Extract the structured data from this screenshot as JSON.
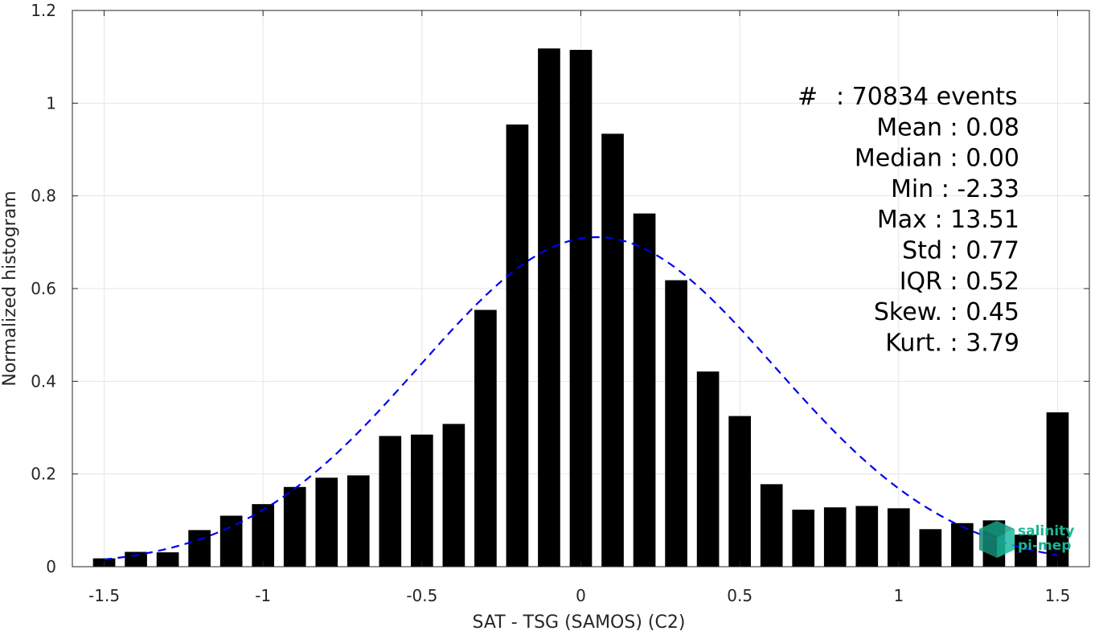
{
  "chart_data": {
    "type": "bar",
    "xlabel": "SAT - TSG (SAMOS) (C2)",
    "ylabel": "Normalized histogram",
    "xlim": [
      -1.6,
      1.6
    ],
    "ylim": [
      0,
      1.2
    ],
    "xticks": [
      -1.5,
      -1,
      -0.5,
      0,
      0.5,
      1,
      1.5
    ],
    "xtick_labels": [
      "-1.5",
      "-1",
      "-0.5",
      "0",
      "0.5",
      "1",
      "1.5"
    ],
    "yticks": [
      0,
      0.2,
      0.4,
      0.6,
      0.8,
      1,
      1.2
    ],
    "ytick_labels": [
      "0",
      "0.2",
      "0.4",
      "0.6",
      "0.8",
      "1",
      "1.2"
    ],
    "grid": true,
    "bar_width": 0.07,
    "bins": [
      {
        "x": -1.5,
        "y": 0.018
      },
      {
        "x": -1.4,
        "y": 0.032
      },
      {
        "x": -1.3,
        "y": 0.031
      },
      {
        "x": -1.2,
        "y": 0.079
      },
      {
        "x": -1.1,
        "y": 0.11
      },
      {
        "x": -1.0,
        "y": 0.135
      },
      {
        "x": -0.9,
        "y": 0.172
      },
      {
        "x": -0.8,
        "y": 0.192
      },
      {
        "x": -0.7,
        "y": 0.197
      },
      {
        "x": -0.6,
        "y": 0.282
      },
      {
        "x": -0.5,
        "y": 0.285
      },
      {
        "x": -0.4,
        "y": 0.308
      },
      {
        "x": -0.3,
        "y": 0.554
      },
      {
        "x": -0.2,
        "y": 0.954
      },
      {
        "x": -0.1,
        "y": 1.118
      },
      {
        "x": 0.0,
        "y": 1.115
      },
      {
        "x": 0.1,
        "y": 0.934
      },
      {
        "x": 0.2,
        "y": 0.762
      },
      {
        "x": 0.3,
        "y": 0.618
      },
      {
        "x": 0.4,
        "y": 0.421
      },
      {
        "x": 0.5,
        "y": 0.325
      },
      {
        "x": 0.6,
        "y": 0.178
      },
      {
        "x": 0.7,
        "y": 0.123
      },
      {
        "x": 0.8,
        "y": 0.128
      },
      {
        "x": 0.9,
        "y": 0.131
      },
      {
        "x": 1.0,
        "y": 0.126
      },
      {
        "x": 1.1,
        "y": 0.081
      },
      {
        "x": 1.2,
        "y": 0.094
      },
      {
        "x": 1.3,
        "y": 0.1
      },
      {
        "x": 1.4,
        "y": 0.069
      },
      {
        "x": 1.5,
        "y": 0.333
      }
    ],
    "fit_curve": {
      "type": "normal",
      "mean": 0.05,
      "std": 0.56,
      "peak": 0.711,
      "x_range": [
        -1.5,
        1.5
      ],
      "color": "#0000ee",
      "style": "dashed"
    },
    "bar_color": "#000000",
    "annotations": [
      {
        "label": "#",
        "value": ": 70834 events"
      },
      {
        "label": "Mean",
        "value": ": 0.08"
      },
      {
        "label": "Median",
        "value": ": 0.00"
      },
      {
        "label": "Min",
        "value": ": -2.33"
      },
      {
        "label": "Max",
        "value": ": 13.51"
      },
      {
        "label": "Std",
        "value": ": 0.77"
      },
      {
        "label": "IQR",
        "value": ": 0.52"
      },
      {
        "label": "Skew.",
        "value": ": 0.45"
      },
      {
        "label": "Kurt.",
        "value": ": 3.79"
      }
    ]
  },
  "logo": {
    "line1": "salinity",
    "line2": "pi-mep",
    "color": "#1ab394"
  }
}
